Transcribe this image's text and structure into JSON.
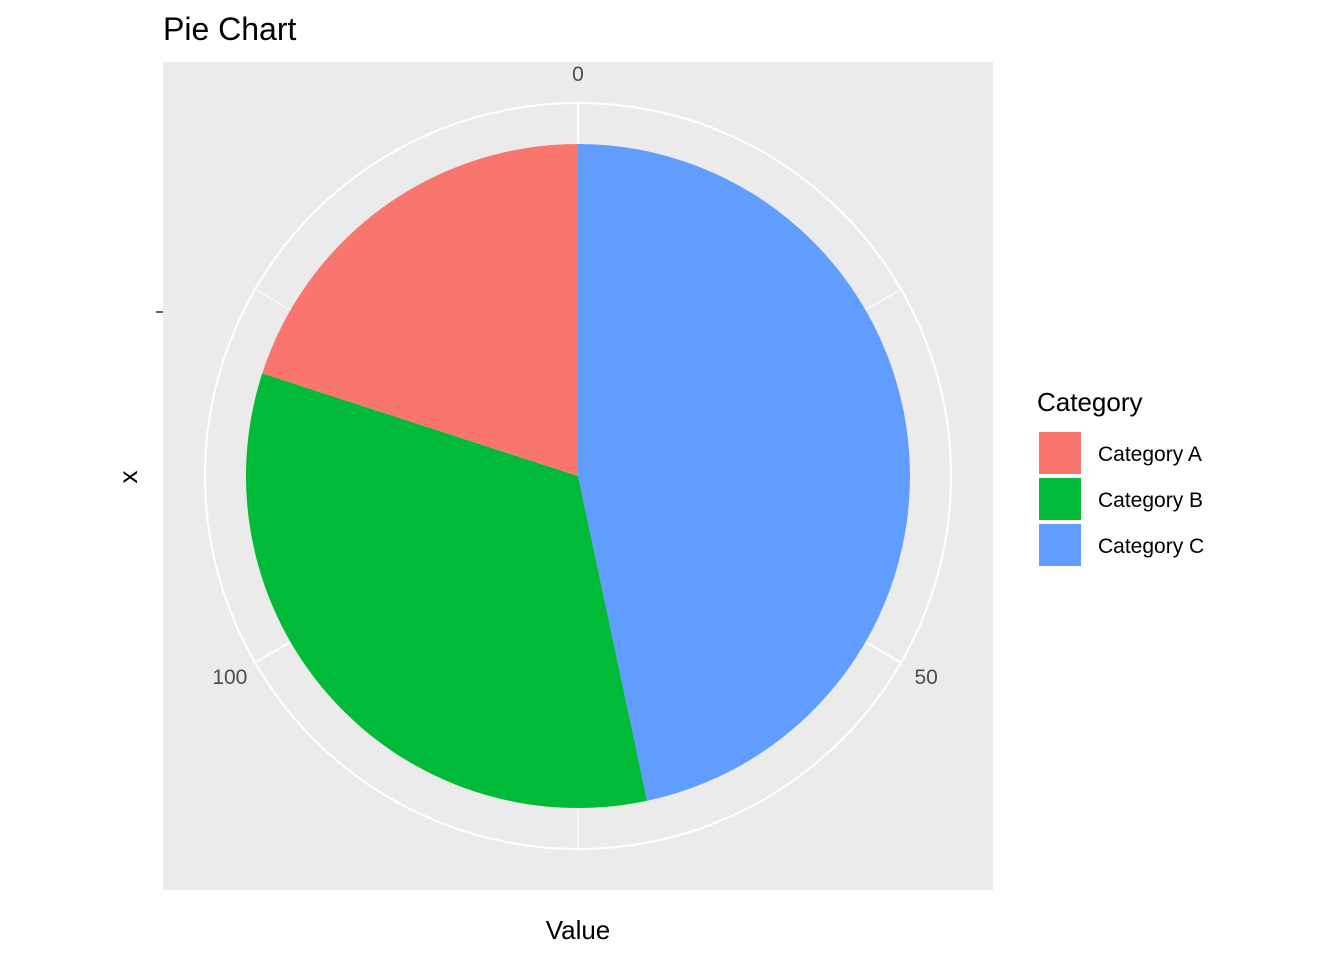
{
  "chart_data": {
    "type": "pie",
    "title": "Pie Chart",
    "xlabel": "Value",
    "ylabel": "x",
    "total": 150,
    "slices": [
      {
        "name": "Category A",
        "value": 30,
        "color": "#F8766D"
      },
      {
        "name": "Category B",
        "value": 50,
        "color": "#00BA38"
      },
      {
        "name": "Category C",
        "value": 70,
        "color": "#619CFF"
      }
    ],
    "stack_order": [
      "Category C",
      "Category B",
      "Category A"
    ],
    "angular_ticks": [
      {
        "label": "0",
        "value": 0
      },
      {
        "label": "50",
        "value": 50
      },
      {
        "label": "100",
        "value": 100
      }
    ],
    "legend": {
      "title": "Category",
      "position": "right"
    },
    "panel_background": "#EBEBEB",
    "grid_color": "#FFFFFF",
    "grid": true
  }
}
